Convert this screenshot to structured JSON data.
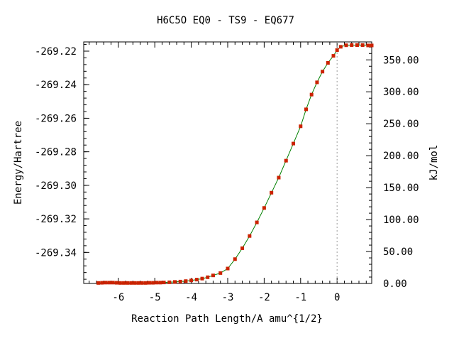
{
  "chart_data": {
    "type": "line",
    "title": "H6C5O   EQ0 - TS9 - EQ677",
    "xlabel": "Reaction Path Length/A amu^{1/2}",
    "ylabel": "Energy/Hartree",
    "y2label": "kJ/mol",
    "xlim": [
      -6.95,
      0.95
    ],
    "ylim": [
      -269.3585,
      -269.2145
    ],
    "y2lim": [
      0,
      378.1
    ],
    "x_ticks": [
      -6,
      -5,
      -4,
      -3,
      -2,
      -1,
      0
    ],
    "x_tick_labels": [
      "-6",
      "-5",
      "-4",
      "-3",
      "-2",
      "-1",
      "0"
    ],
    "y_ticks": [
      -269.22,
      -269.24,
      -269.26,
      -269.28,
      -269.3,
      -269.32,
      -269.34
    ],
    "y_tick_labels": [
      "-269.22",
      "-269.24",
      "-269.26",
      "-269.28",
      "-269.30",
      "-269.32",
      "-269.34"
    ],
    "y2_ticks": [
      0,
      50,
      100,
      150,
      200,
      250,
      300,
      350
    ],
    "y2_tick_labels": [
      "0.00",
      "50.00",
      "100.00",
      "150.00",
      "200.00",
      "250.00",
      "300.00",
      "350.00"
    ],
    "ts_marker_x": 0,
    "grid": false,
    "line_color": "#008000",
    "marker_color": "#cc2200",
    "vline_color": "#999999",
    "series": [
      {
        "x": [
          -6.55,
          -6.45,
          -6.35,
          -6.25,
          -6.15,
          -6.05,
          -5.95,
          -5.85,
          -5.75,
          -5.65,
          -5.55,
          -5.45,
          -5.35,
          -5.25,
          -5.15,
          -5.05,
          -4.95,
          -4.85,
          -4.75,
          -4.6,
          -4.45,
          -4.3,
          -4.15,
          -4.0,
          -3.85,
          -3.7,
          -3.55,
          -3.4,
          -3.2,
          -3.0,
          -2.8,
          -2.6,
          -2.4,
          -2.2,
          -2.0,
          -1.8,
          -1.6,
          -1.4,
          -1.2,
          -1.0,
          -0.85,
          -0.7,
          -0.55,
          -0.4,
          -0.25,
          -0.1,
          0.0,
          0.1,
          0.25,
          0.4,
          0.55,
          0.7,
          0.85,
          0.95
        ],
        "y": [
          -269.3582,
          -269.3581,
          -269.358,
          -269.358,
          -269.358,
          -269.3581,
          -269.3582,
          -269.3582,
          -269.3582,
          -269.3582,
          -269.3582,
          -269.3582,
          -269.3582,
          -269.3582,
          -269.3581,
          -269.3581,
          -269.358,
          -269.358,
          -269.3579,
          -269.3578,
          -269.3576,
          -269.3574,
          -269.3571,
          -269.3567,
          -269.3562,
          -269.3556,
          -269.3548,
          -269.3537,
          -269.3523,
          -269.3496,
          -269.344,
          -269.3375,
          -269.3302,
          -269.3221,
          -269.3135,
          -269.3044,
          -269.2954,
          -269.2853,
          -269.2751,
          -269.2648,
          -269.2547,
          -269.2459,
          -269.2386,
          -269.2322,
          -269.227,
          -269.2228,
          -269.2194,
          -269.2174,
          -269.2165,
          -269.2164,
          -269.2164,
          -269.2164,
          -269.2166,
          -269.2166
        ]
      }
    ]
  }
}
